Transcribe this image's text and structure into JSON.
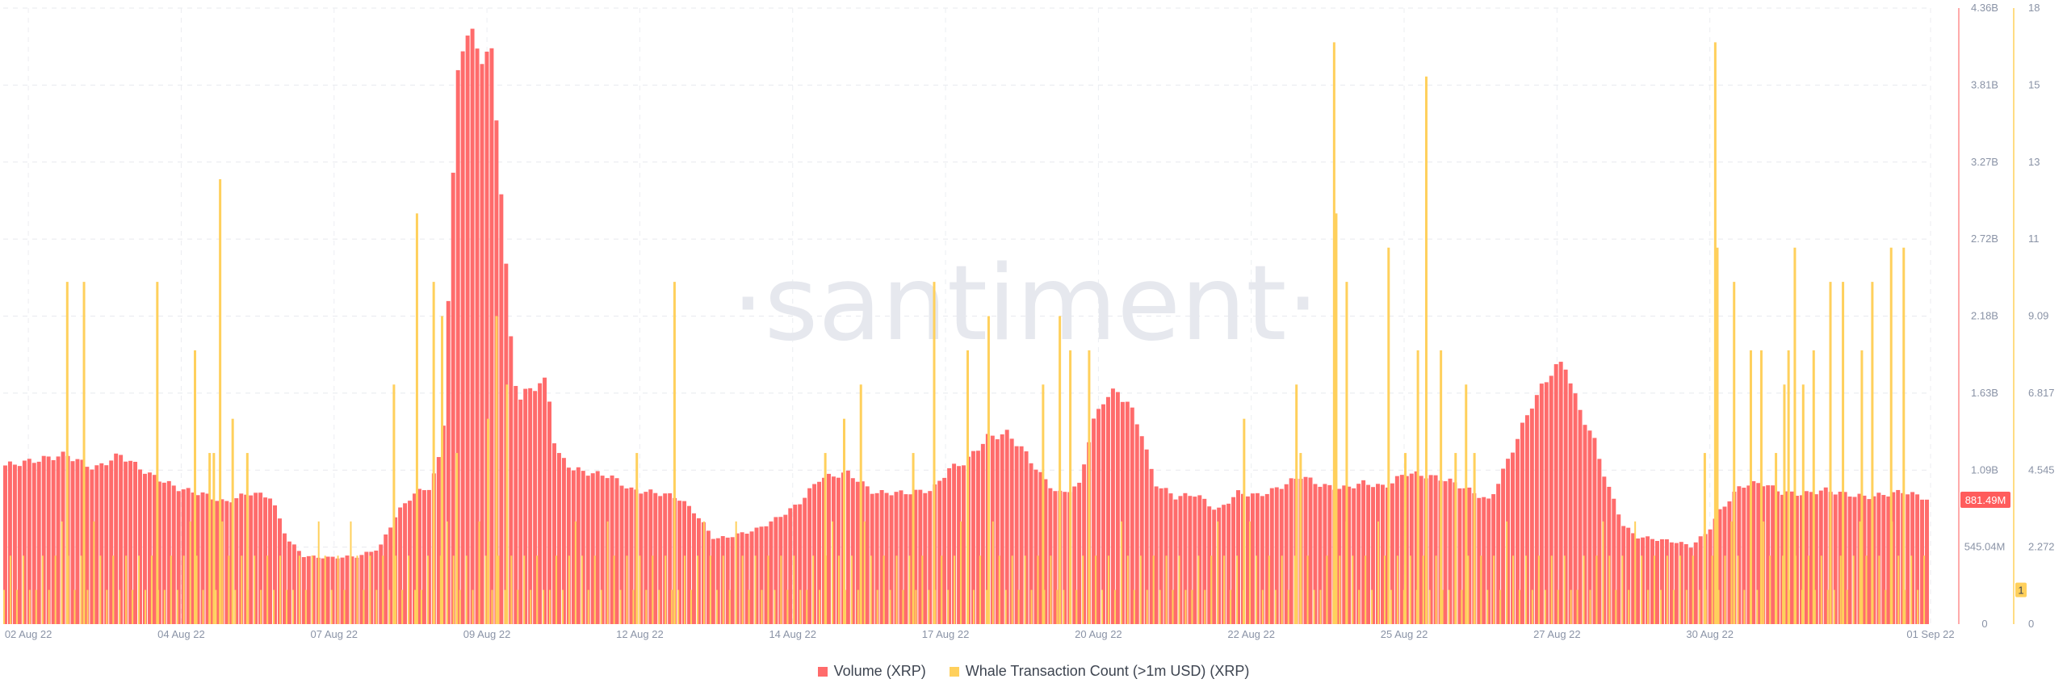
{
  "watermark": "·santiment·",
  "legend": [
    {
      "label": "Volume (XRP)",
      "color": "#ff6b6b"
    },
    {
      "label": "Whale Transaction Count (>1m USD) (XRP)",
      "color": "#ffd05c"
    }
  ],
  "chart_data": {
    "type": "bar",
    "x_ticks": [
      "02 Aug 22",
      "04 Aug 22",
      "07 Aug 22",
      "09 Aug 22",
      "12 Aug 22",
      "14 Aug 22",
      "17 Aug 22",
      "20 Aug 22",
      "22 Aug 22",
      "25 Aug 22",
      "27 Aug 22",
      "30 Aug 22",
      "01 Sep 22"
    ],
    "y_left_ticks": [
      "0",
      "545.04M",
      "1.09B",
      "1.63B",
      "2.18B",
      "2.72B",
      "3.27B",
      "3.81B",
      "4.36B"
    ],
    "y_right_ticks": [
      "0",
      "2.272",
      "4.545",
      "6.817",
      "9.09",
      "11",
      "13",
      "15",
      "18"
    ],
    "y_left_range": [
      0,
      4.36
    ],
    "y_left_unit": "B",
    "y_right_range": [
      0,
      18
    ],
    "current_volume_label": "881.49M",
    "current_whale_label": "1",
    "grid": true,
    "legend_position": "bottom",
    "series": [
      {
        "name": "Volume (XRP)",
        "axis": "left",
        "color": "#ff6b6b",
        "points": [
          [
            0.0,
            1.12
          ],
          [
            0.8,
            1.16
          ],
          [
            1.5,
            1.2
          ],
          [
            2.2,
            1.1
          ],
          [
            2.8,
            1.2
          ],
          [
            3.5,
            1.06
          ],
          [
            4.2,
            0.96
          ],
          [
            4.8,
            0.92
          ],
          [
            5.3,
            0.86
          ],
          [
            5.9,
            0.93
          ],
          [
            6.4,
            0.9
          ],
          [
            6.8,
            0.6
          ],
          [
            7.2,
            0.48
          ],
          [
            7.8,
            0.47
          ],
          [
            8.5,
            0.48
          ],
          [
            9.0,
            0.54
          ],
          [
            9.4,
            0.78
          ],
          [
            9.8,
            0.92
          ],
          [
            10.2,
            0.97
          ],
          [
            10.5,
            1.25
          ],
          [
            10.7,
            2.8
          ],
          [
            10.9,
            4.1
          ],
          [
            11.1,
            4.18
          ],
          [
            11.4,
            4.05
          ],
          [
            11.7,
            4.0
          ],
          [
            11.9,
            3.1
          ],
          [
            12.1,
            2.1
          ],
          [
            12.3,
            1.58
          ],
          [
            12.6,
            1.67
          ],
          [
            13.0,
            1.72
          ],
          [
            13.2,
            1.22
          ],
          [
            13.6,
            1.1
          ],
          [
            14.0,
            1.07
          ],
          [
            14.5,
            1.05
          ],
          [
            15.0,
            0.95
          ],
          [
            15.6,
            0.93
          ],
          [
            16.1,
            0.9
          ],
          [
            16.5,
            0.8
          ],
          [
            17.0,
            0.6
          ],
          [
            17.5,
            0.63
          ],
          [
            18.0,
            0.67
          ],
          [
            18.5,
            0.75
          ],
          [
            19.0,
            0.85
          ],
          [
            19.5,
            1.03
          ],
          [
            20.2,
            1.07
          ],
          [
            20.8,
            0.93
          ],
          [
            21.6,
            0.93
          ],
          [
            22.2,
            0.95
          ],
          [
            22.6,
            1.1
          ],
          [
            23.0,
            1.15
          ],
          [
            23.5,
            1.32
          ],
          [
            24.0,
            1.35
          ],
          [
            24.4,
            1.22
          ],
          [
            24.8,
            1.05
          ],
          [
            25.2,
            0.92
          ],
          [
            25.7,
            0.98
          ],
          [
            26.0,
            1.4
          ],
          [
            26.3,
            1.6
          ],
          [
            26.6,
            1.65
          ],
          [
            26.9,
            1.55
          ],
          [
            27.2,
            1.35
          ],
          [
            27.5,
            1.0
          ],
          [
            28.0,
            0.9
          ],
          [
            28.5,
            0.92
          ],
          [
            29.0,
            0.8
          ],
          [
            29.5,
            0.93
          ],
          [
            30.0,
            0.91
          ],
          [
            30.5,
            0.97
          ],
          [
            31.0,
            1.05
          ],
          [
            31.5,
            0.98
          ],
          [
            32.0,
            0.96
          ],
          [
            32.5,
            1.0
          ],
          [
            33.0,
            0.97
          ],
          [
            33.5,
            1.07
          ],
          [
            34.0,
            1.05
          ],
          [
            34.5,
            1.02
          ],
          [
            35.0,
            0.95
          ],
          [
            35.5,
            0.87
          ],
          [
            36.0,
            1.2
          ],
          [
            36.5,
            1.55
          ],
          [
            37.0,
            1.8
          ],
          [
            37.3,
            1.85
          ],
          [
            37.6,
            1.55
          ],
          [
            38.0,
            1.3
          ],
          [
            38.3,
            1.0
          ],
          [
            38.7,
            0.7
          ],
          [
            39.0,
            0.62
          ],
          [
            39.5,
            0.6
          ],
          [
            40.0,
            0.58
          ],
          [
            40.3,
            0.55
          ],
          [
            40.7,
            0.65
          ],
          [
            41.0,
            0.8
          ],
          [
            41.5,
            0.98
          ],
          [
            42.0,
            1.0
          ],
          [
            42.5,
            0.93
          ],
          [
            43.0,
            0.92
          ],
          [
            43.5,
            0.95
          ],
          [
            44.0,
            0.92
          ],
          [
            44.5,
            0.9
          ],
          [
            45.0,
            0.92
          ],
          [
            45.4,
            0.94
          ],
          [
            46.0,
            0.88
          ]
        ]
      },
      {
        "name": "Whale Transaction Count (>1m USD) (XRP)",
        "axis": "right",
        "color": "#ffd05c",
        "baseline": [
          1,
          2,
          1,
          2,
          1,
          1,
          2,
          1,
          2,
          3,
          2,
          1,
          2,
          1,
          3,
          2,
          1,
          2,
          1,
          2
        ],
        "spikes": [
          [
            1.5,
            10
          ],
          [
            1.9,
            10
          ],
          [
            3.65,
            10
          ],
          [
            4.55,
            8
          ],
          [
            4.9,
            5
          ],
          [
            5.0,
            5
          ],
          [
            5.15,
            13
          ],
          [
            5.45,
            6
          ],
          [
            5.8,
            5
          ],
          [
            9.3,
            7
          ],
          [
            9.85,
            12
          ],
          [
            10.25,
            10
          ],
          [
            10.45,
            9
          ],
          [
            10.8,
            5
          ],
          [
            11.55,
            6
          ],
          [
            11.75,
            9
          ],
          [
            12.0,
            7
          ],
          [
            15.1,
            5
          ],
          [
            16.0,
            10
          ],
          [
            19.6,
            5
          ],
          [
            20.05,
            6
          ],
          [
            20.45,
            7
          ],
          [
            21.7,
            5
          ],
          [
            22.2,
            10
          ],
          [
            23.0,
            8
          ],
          [
            23.5,
            9
          ],
          [
            24.8,
            7
          ],
          [
            25.2,
            9
          ],
          [
            25.45,
            8
          ],
          [
            25.9,
            8
          ],
          [
            29.6,
            6
          ],
          [
            30.85,
            7
          ],
          [
            30.95,
            5
          ],
          [
            31.75,
            17
          ],
          [
            31.8,
            12
          ],
          [
            32.05,
            10
          ],
          [
            33.05,
            11
          ],
          [
            33.45,
            5
          ],
          [
            33.75,
            8
          ],
          [
            33.95,
            16
          ],
          [
            34.3,
            8
          ],
          [
            34.65,
            5
          ],
          [
            34.9,
            7
          ],
          [
            35.1,
            5
          ],
          [
            40.6,
            5
          ],
          [
            40.85,
            17
          ],
          [
            40.9,
            11
          ],
          [
            41.3,
            10
          ],
          [
            41.7,
            8
          ],
          [
            41.95,
            8
          ],
          [
            42.3,
            5
          ],
          [
            42.5,
            7
          ],
          [
            42.6,
            8
          ],
          [
            42.75,
            11
          ],
          [
            42.95,
            7
          ],
          [
            43.2,
            8
          ],
          [
            43.6,
            10
          ],
          [
            43.9,
            10
          ],
          [
            44.35,
            8
          ],
          [
            44.6,
            10
          ],
          [
            45.05,
            11
          ],
          [
            45.35,
            11
          ]
        ]
      }
    ]
  }
}
